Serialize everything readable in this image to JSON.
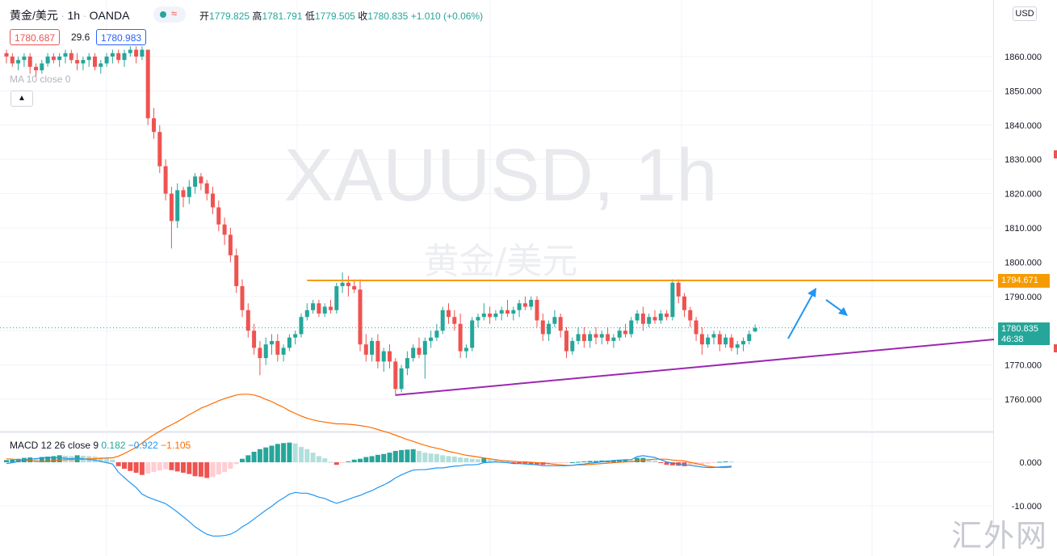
{
  "header": {
    "symbol": "黄金/美元",
    "interval": "1h",
    "broker": "OANDA",
    "open_label": "开",
    "open": "1779.825",
    "high_label": "高",
    "high": "1781.791",
    "low_label": "低",
    "low": "1779.505",
    "close_label": "收",
    "close": "1780.835",
    "change": "+1.010 (+0.06%)",
    "bid": "1780.687",
    "spread": "29.6",
    "ask": "1780.983",
    "ma_label": "MA 10 close 0",
    "currency": "USD"
  },
  "watermark": {
    "line1": "XAUUSD, 1h",
    "line2": "黄金/美元"
  },
  "macd": {
    "label": "MACD 12 26 close 9",
    "hist": "0.182",
    "macd": "−0.922",
    "signal": "−1.105",
    "ticks": [
      "0.000",
      "-10.000"
    ]
  },
  "price_axis": {
    "ticks": [
      "1860.000",
      "1850.000",
      "1840.000",
      "1830.000",
      "1820.000",
      "1810.000",
      "1800.000",
      "1790.000",
      "1770.000",
      "1760.000"
    ]
  },
  "tags": {
    "resistance": "1794.671",
    "last_price": "1780.835",
    "countdown": "46:38"
  },
  "site_watermark": "汇外网",
  "colors": {
    "up": "#26a69a",
    "down": "#ef5350",
    "resistance": "#f59b00",
    "trendline": "#9c27b0",
    "arrow": "#2196f3",
    "macd_line": "#2196f3",
    "signal_line": "#ff6d00"
  },
  "chart_data": {
    "type": "candlestick",
    "symbol": "XAUUSD",
    "interval": "1h",
    "ylim": [
      1755,
      1868
    ],
    "macd_ylim": [
      -20,
      4
    ],
    "candles": [
      [
        1861,
        1862,
        1858,
        1860
      ],
      [
        1860,
        1861,
        1857,
        1858
      ],
      [
        1858,
        1860,
        1856,
        1859
      ],
      [
        1859,
        1861,
        1857,
        1860
      ],
      [
        1860,
        1861,
        1855,
        1857
      ],
      [
        1857,
        1858,
        1854,
        1856
      ],
      [
        1856,
        1859,
        1855,
        1858
      ],
      [
        1858,
        1861,
        1857,
        1860
      ],
      [
        1860,
        1861,
        1858,
        1859
      ],
      [
        1859,
        1861,
        1857,
        1860
      ],
      [
        1860,
        1862,
        1858,
        1861
      ],
      [
        1861,
        1862,
        1858,
        1859
      ],
      [
        1859,
        1861,
        1856,
        1858
      ],
      [
        1858,
        1860,
        1856,
        1859
      ],
      [
        1859,
        1861,
        1857,
        1860
      ],
      [
        1860,
        1861,
        1856,
        1857
      ],
      [
        1857,
        1859,
        1855,
        1858
      ],
      [
        1858,
        1861,
        1857,
        1860
      ],
      [
        1860,
        1862,
        1858,
        1861
      ],
      [
        1861,
        1862,
        1858,
        1859
      ],
      [
        1859,
        1862,
        1857,
        1861
      ],
      [
        1861,
        1863,
        1860,
        1862
      ],
      [
        1862,
        1863,
        1858,
        1860
      ],
      [
        1860,
        1863,
        1859,
        1862
      ],
      [
        1862,
        1862,
        1840,
        1842
      ],
      [
        1842,
        1845,
        1836,
        1838
      ],
      [
        1838,
        1840,
        1826,
        1828
      ],
      [
        1828,
        1830,
        1818,
        1820
      ],
      [
        1820,
        1822,
        1804,
        1812
      ],
      [
        1812,
        1823,
        1810,
        1821
      ],
      [
        1821,
        1822,
        1816,
        1819
      ],
      [
        1819,
        1824,
        1817,
        1822
      ],
      [
        1822,
        1826,
        1820,
        1825
      ],
      [
        1825,
        1826,
        1821,
        1823
      ],
      [
        1823,
        1824,
        1818,
        1820
      ],
      [
        1820,
        1822,
        1814,
        1816
      ],
      [
        1816,
        1818,
        1809,
        1811
      ],
      [
        1811,
        1813,
        1805,
        1808
      ],
      [
        1808,
        1810,
        1800,
        1802
      ],
      [
        1802,
        1804,
        1791,
        1793
      ],
      [
        1793,
        1795,
        1784,
        1786
      ],
      [
        1786,
        1788,
        1778,
        1780
      ],
      [
        1780,
        1782,
        1773,
        1775
      ],
      [
        1775,
        1777,
        1767,
        1772
      ],
      [
        1772,
        1778,
        1770,
        1776
      ],
      [
        1776,
        1779,
        1773,
        1777
      ],
      [
        1777,
        1779,
        1771,
        1773
      ],
      [
        1773,
        1776,
        1771,
        1775
      ],
      [
        1775,
        1779,
        1774,
        1778
      ],
      [
        1778,
        1780,
        1776,
        1779
      ],
      [
        1779,
        1785,
        1778,
        1784
      ],
      [
        1784,
        1788,
        1783,
        1786
      ],
      [
        1786,
        1789,
        1785,
        1788
      ],
      [
        1788,
        1789,
        1784,
        1785
      ],
      [
        1785,
        1788,
        1784,
        1787
      ],
      [
        1787,
        1789,
        1785,
        1786
      ],
      [
        1786,
        1794,
        1785,
        1793
      ],
      [
        1793,
        1797,
        1791,
        1794
      ],
      [
        1794,
        1796,
        1790,
        1793
      ],
      [
        1793,
        1795,
        1791,
        1792
      ],
      [
        1792,
        1795,
        1774,
        1776
      ],
      [
        1776,
        1779,
        1771,
        1773
      ],
      [
        1773,
        1778,
        1771,
        1777
      ],
      [
        1777,
        1779,
        1769,
        1771
      ],
      [
        1771,
        1775,
        1768,
        1774
      ],
      [
        1774,
        1776,
        1769,
        1771
      ],
      [
        1771,
        1772,
        1761,
        1763
      ],
      [
        1763,
        1770,
        1762,
        1769
      ],
      [
        1769,
        1774,
        1767,
        1772
      ],
      [
        1772,
        1776,
        1771,
        1775
      ],
      [
        1775,
        1778,
        1772,
        1773
      ],
      [
        1773,
        1778,
        1766,
        1777
      ],
      [
        1777,
        1780,
        1775,
        1778
      ],
      [
        1778,
        1782,
        1777,
        1780
      ],
      [
        1780,
        1787,
        1779,
        1786
      ],
      [
        1786,
        1788,
        1782,
        1784
      ],
      [
        1784,
        1786,
        1780,
        1782
      ],
      [
        1782,
        1785,
        1772,
        1774
      ],
      [
        1774,
        1776,
        1772,
        1775
      ],
      [
        1775,
        1784,
        1774,
        1783
      ],
      [
        1783,
        1785,
        1781,
        1784
      ],
      [
        1784,
        1788,
        1783,
        1785
      ],
      [
        1785,
        1787,
        1782,
        1784
      ],
      [
        1784,
        1786,
        1783,
        1785
      ],
      [
        1785,
        1787,
        1783,
        1786
      ],
      [
        1786,
        1789,
        1784,
        1785
      ],
      [
        1785,
        1787,
        1783,
        1786
      ],
      [
        1786,
        1789,
        1784,
        1788
      ],
      [
        1788,
        1790,
        1786,
        1787
      ],
      [
        1787,
        1790,
        1786,
        1789
      ],
      [
        1789,
        1790,
        1781,
        1783
      ],
      [
        1783,
        1785,
        1777,
        1779
      ],
      [
        1779,
        1783,
        1777,
        1782
      ],
      [
        1782,
        1786,
        1781,
        1784
      ],
      [
        1784,
        1785,
        1778,
        1780
      ],
      [
        1780,
        1781,
        1772,
        1774
      ],
      [
        1774,
        1778,
        1773,
        1777
      ],
      [
        1777,
        1781,
        1776,
        1779
      ],
      [
        1779,
        1781,
        1775,
        1777
      ],
      [
        1777,
        1780,
        1775,
        1779
      ],
      [
        1779,
        1781,
        1776,
        1778
      ],
      [
        1778,
        1780,
        1776,
        1779
      ],
      [
        1779,
        1781,
        1776,
        1777
      ],
      [
        1777,
        1779,
        1775,
        1778
      ],
      [
        1778,
        1781,
        1777,
        1780
      ],
      [
        1780,
        1782,
        1778,
        1779
      ],
      [
        1779,
        1784,
        1778,
        1783
      ],
      [
        1783,
        1786,
        1782,
        1785
      ],
      [
        1785,
        1787,
        1780,
        1782
      ],
      [
        1782,
        1785,
        1781,
        1784
      ],
      [
        1784,
        1786,
        1782,
        1783
      ],
      [
        1783,
        1786,
        1782,
        1785
      ],
      [
        1785,
        1786,
        1783,
        1784
      ],
      [
        1784,
        1795,
        1783,
        1794
      ],
      [
        1794,
        1795,
        1788,
        1790
      ],
      [
        1790,
        1791,
        1784,
        1786
      ],
      [
        1786,
        1787,
        1781,
        1783
      ],
      [
        1783,
        1784,
        1777,
        1779
      ],
      [
        1779,
        1781,
        1773,
        1776
      ],
      [
        1776,
        1779,
        1775,
        1778
      ],
      [
        1778,
        1780,
        1776,
        1779
      ],
      [
        1779,
        1780,
        1774,
        1776
      ],
      [
        1776,
        1779,
        1775,
        1778
      ],
      [
        1778,
        1779,
        1774,
        1775
      ],
      [
        1775,
        1777,
        1773,
        1776
      ],
      [
        1776,
        1778,
        1774,
        1777
      ],
      [
        1777,
        1780,
        1776,
        1779
      ],
      [
        1779.8,
        1781.8,
        1779.5,
        1780.8
      ]
    ],
    "macd_series": [
      [
        0.5,
        -0.3,
        0.8
      ],
      [
        0.6,
        -0.1,
        0.7
      ],
      [
        0.8,
        0.2,
        0.6
      ],
      [
        1.0,
        0.5,
        0.5
      ],
      [
        1.1,
        0.7,
        0.4
      ],
      [
        1.0,
        0.8,
        0.2
      ],
      [
        1.2,
        1.0,
        0.2
      ],
      [
        1.3,
        1.1,
        0.2
      ],
      [
        1.4,
        1.0,
        0.4
      ],
      [
        1.6,
        1.1,
        0.5
      ],
      [
        1.5,
        0.9,
        0.6
      ],
      [
        1.4,
        0.8,
        0.6
      ],
      [
        1.6,
        1.0,
        0.6
      ],
      [
        1.5,
        0.8,
        0.7
      ],
      [
        1.4,
        0.6,
        0.8
      ],
      [
        1.3,
        0.5,
        0.8
      ],
      [
        1.1,
        0.2,
        0.9
      ],
      [
        0.9,
        -0.1,
        1.0
      ],
      [
        0.6,
        -0.4,
        1.0
      ],
      [
        -0.9,
        -2.3,
        1.4
      ],
      [
        -1.5,
        -3.5,
        2.0
      ],
      [
        -2.0,
        -4.7,
        2.7
      ],
      [
        -2.4,
        -5.8,
        3.4
      ],
      [
        -2.9,
        -7.3,
        4.4
      ],
      [
        -2.6,
        -8.0,
        5.4
      ],
      [
        -2.2,
        -8.5,
        6.3
      ],
      [
        -1.9,
        -9.0,
        7.1
      ],
      [
        -1.6,
        -9.5,
        7.9
      ],
      [
        -1.8,
        -10.4,
        8.6
      ],
      [
        -2.1,
        -11.4,
        9.3
      ],
      [
        -2.4,
        -12.5,
        10.1
      ],
      [
        -2.7,
        -13.6,
        10.9
      ],
      [
        -3.2,
        -14.8,
        11.6
      ],
      [
        -3.3,
        -15.7,
        12.4
      ],
      [
        -3.6,
        -16.5,
        12.9
      ],
      [
        -3.4,
        -16.9,
        13.5
      ],
      [
        -2.8,
        -16.9,
        14.1
      ],
      [
        -2.2,
        -16.8,
        14.6
      ],
      [
        -1.5,
        -16.5,
        15.0
      ],
      [
        -0.4,
        -15.8,
        15.4
      ],
      [
        0.8,
        -14.8,
        15.6
      ],
      [
        1.6,
        -14.0,
        15.6
      ],
      [
        2.4,
        -13.0,
        15.4
      ],
      [
        3.0,
        -12.0,
        15.0
      ],
      [
        3.4,
        -11.0,
        14.4
      ],
      [
        3.8,
        -10.1,
        13.9
      ],
      [
        4.2,
        -9.0,
        13.2
      ],
      [
        4.4,
        -8.2,
        12.6
      ],
      [
        4.5,
        -7.3,
        11.8
      ],
      [
        4.3,
        -6.9,
        11.2
      ],
      [
        3.5,
        -7.1,
        10.6
      ],
      [
        3.0,
        -7.1,
        10.1
      ],
      [
        2.2,
        -7.5,
        9.7
      ],
      [
        1.4,
        -8.0,
        9.4
      ],
      [
        0.9,
        -8.3,
        9.2
      ],
      [
        0.1,
        -8.9,
        9.0
      ],
      [
        -0.6,
        -9.4,
        8.8
      ],
      [
        -0.2,
        -9.0,
        8.8
      ],
      [
        0.2,
        -8.5,
        8.7
      ],
      [
        0.6,
        -8.0,
        8.6
      ],
      [
        0.8,
        -7.6,
        8.4
      ],
      [
        1.2,
        -7.0,
        8.2
      ],
      [
        1.4,
        -6.5,
        7.9
      ],
      [
        1.7,
        -5.8,
        7.5
      ],
      [
        1.9,
        -5.2,
        7.1
      ],
      [
        2.2,
        -4.5,
        6.7
      ],
      [
        2.6,
        -3.6,
        6.2
      ],
      [
        2.8,
        -2.9,
        5.7
      ],
      [
        2.9,
        -2.3,
        5.2
      ],
      [
        3.0,
        -1.8,
        4.8
      ],
      [
        2.6,
        -1.7,
        4.3
      ],
      [
        2.2,
        -1.7,
        3.9
      ],
      [
        2.0,
        -1.5,
        3.5
      ],
      [
        1.9,
        -1.3,
        3.2
      ],
      [
        1.6,
        -1.3,
        2.9
      ],
      [
        1.4,
        -1.1,
        2.5
      ],
      [
        1.3,
        -0.9,
        2.2
      ],
      [
        1.1,
        -0.8,
        1.9
      ],
      [
        1.0,
        -0.6,
        1.6
      ],
      [
        0.8,
        -0.6,
        1.4
      ],
      [
        0.7,
        -0.5,
        1.2
      ],
      [
        0.9,
        -0.1,
        1.0
      ],
      [
        0.8,
        0.0,
        0.8
      ],
      [
        0.7,
        0.1,
        0.6
      ],
      [
        0.4,
        0.0,
        0.4
      ],
      [
        0.2,
        -0.1,
        0.3
      ],
      [
        -0.1,
        -0.3,
        0.2
      ],
      [
        -0.2,
        -0.3,
        0.1
      ],
      [
        -0.3,
        -0.4,
        0.1
      ],
      [
        -0.5,
        -0.5,
        0.0
      ],
      [
        -0.5,
        -0.6,
        -0.1
      ],
      [
        -0.6,
        -0.8,
        -0.2
      ],
      [
        -0.5,
        -0.8,
        -0.3
      ],
      [
        -0.3,
        -0.8,
        -0.5
      ],
      [
        -0.2,
        -0.8,
        -0.6
      ],
      [
        -0.1,
        -0.8,
        -0.7
      ],
      [
        0.0,
        -0.7,
        -0.7
      ],
      [
        0.1,
        -0.5,
        -0.6
      ],
      [
        0.2,
        -0.4,
        -0.6
      ],
      [
        0.3,
        -0.2,
        -0.5
      ],
      [
        0.3,
        -0.1,
        -0.4
      ],
      [
        0.4,
        0.1,
        -0.3
      ],
      [
        0.4,
        0.2,
        -0.2
      ],
      [
        0.5,
        0.4,
        -0.1
      ],
      [
        0.5,
        0.5,
        0.0
      ],
      [
        0.5,
        0.6,
        0.1
      ],
      [
        0.4,
        0.6,
        0.2
      ],
      [
        1.0,
        1.3,
        0.3
      ],
      [
        1.0,
        1.5,
        0.5
      ],
      [
        0.7,
        1.3,
        0.6
      ],
      [
        0.4,
        1.1,
        0.7
      ],
      [
        -0.1,
        0.6,
        0.7
      ],
      [
        -0.6,
        0.1,
        0.7
      ],
      [
        -0.7,
        -0.2,
        0.5
      ],
      [
        -0.8,
        -0.4,
        0.4
      ],
      [
        -0.9,
        -0.6,
        0.3
      ],
      [
        -0.7,
        -0.7,
        0.0
      ],
      [
        -0.6,
        -0.9,
        -0.3
      ],
      [
        -0.5,
        -1.1,
        -0.6
      ],
      [
        -0.3,
        -1.2,
        -0.9
      ],
      [
        -0.1,
        -1.2,
        -1.1
      ],
      [
        0.1,
        -1.1,
        -1.2
      ],
      [
        0.2,
        -1.0,
        -1.2
      ],
      [
        0.182,
        -0.922,
        -1.105
      ]
    ],
    "resistance_level": 1794.671,
    "trendline": {
      "from": [
        66,
        1761.2
      ],
      "to": [
        171,
        1778.0
      ]
    },
    "price_axis_label": "USD"
  }
}
